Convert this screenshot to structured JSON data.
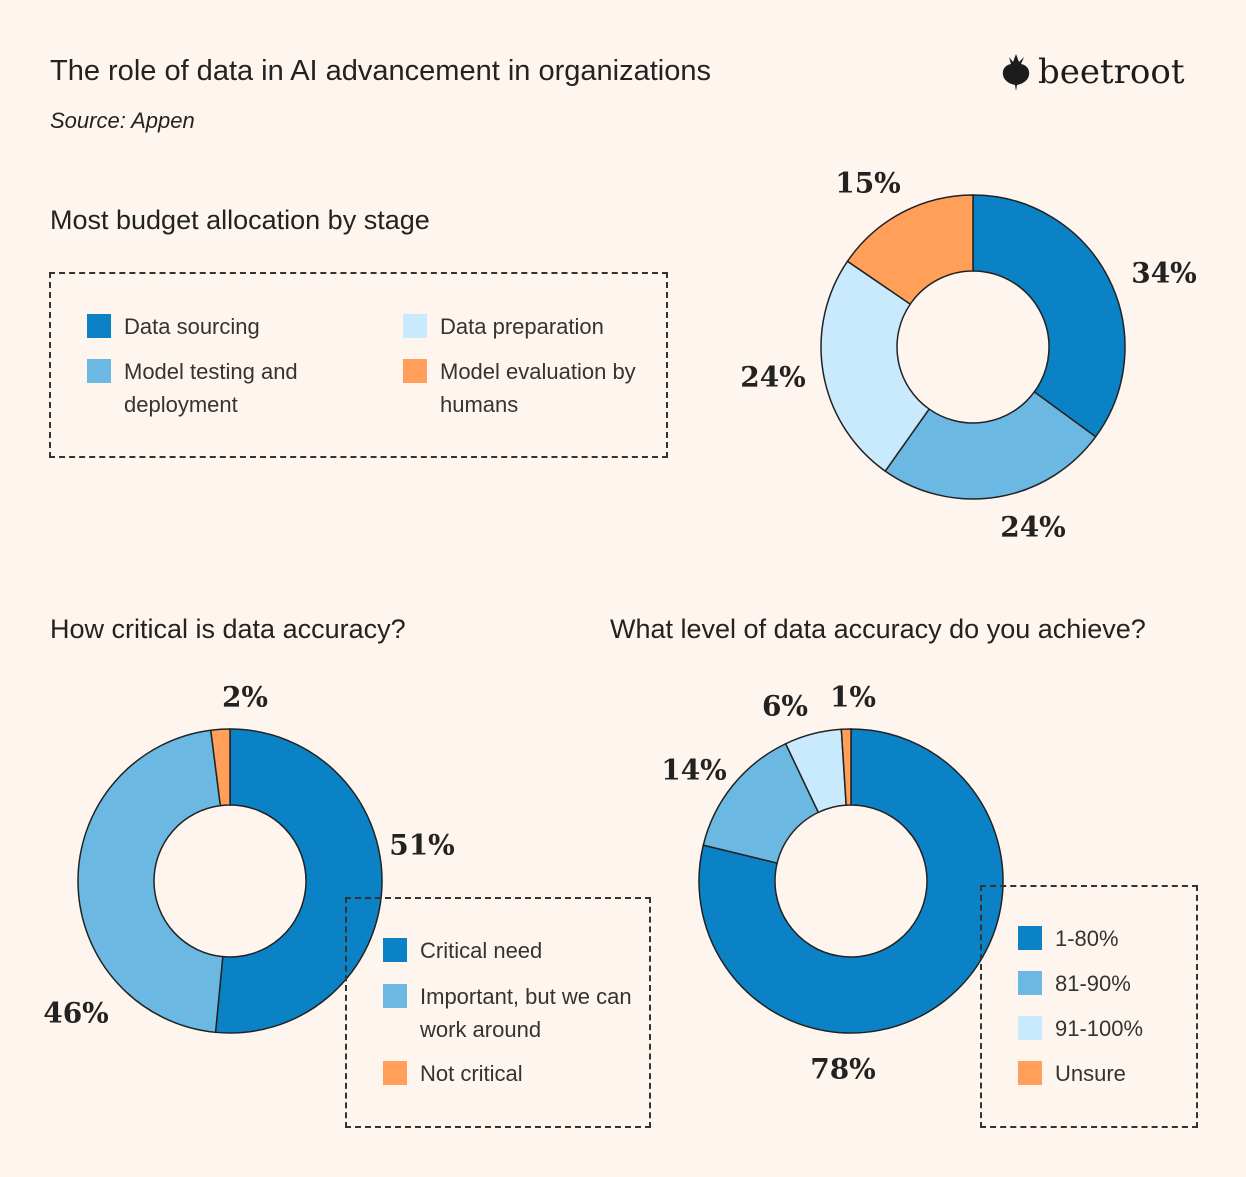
{
  "header": {
    "title": "The role of data in AI advancement in organizations",
    "source": "Source: Appen",
    "logo_text": "beetroot"
  },
  "colors": {
    "background": "#FEF5EE",
    "dark_blue": "#0A82C5",
    "mid_blue": "#6BB9E3",
    "light_blue": "#C9EAFC",
    "orange": "#FF9F59"
  },
  "chart_data": [
    {
      "type": "pie",
      "donut": true,
      "title": "Most budget allocation by stage",
      "categories": [
        "Data sourcing",
        "Model testing and deployment",
        "Data preparation",
        "Model evaluation by humans"
      ],
      "values": [
        34,
        24,
        24,
        15
      ],
      "labels": [
        "34%",
        "24%",
        "24%",
        "15%"
      ],
      "colors": [
        "#0A82C5",
        "#6BB9E3",
        "#C9EAFC",
        "#FF9F59"
      ],
      "legend_placement": "left"
    },
    {
      "type": "pie",
      "donut": true,
      "title": "How critical is data accuracy?",
      "categories": [
        "Critical need",
        "Important, but we can work around",
        "Not critical"
      ],
      "values": [
        51,
        46,
        2
      ],
      "labels": [
        "51%",
        "46%",
        "2%"
      ],
      "colors": [
        "#0A82C5",
        "#6BB9E3",
        "#FF9F59"
      ],
      "legend_placement": "bottom-right"
    },
    {
      "type": "pie",
      "donut": true,
      "title": "What level of data accuracy do you achieve?",
      "categories": [
        "1-80%",
        "81-90%",
        "91-100%",
        "Unsure"
      ],
      "values": [
        78,
        14,
        6,
        1
      ],
      "labels": [
        "78%",
        "14%",
        "6%",
        "1%"
      ],
      "colors": [
        "#0A82C5",
        "#6BB9E3",
        "#C9EAFC",
        "#FF9F59"
      ],
      "legend_placement": "bottom-right"
    }
  ]
}
